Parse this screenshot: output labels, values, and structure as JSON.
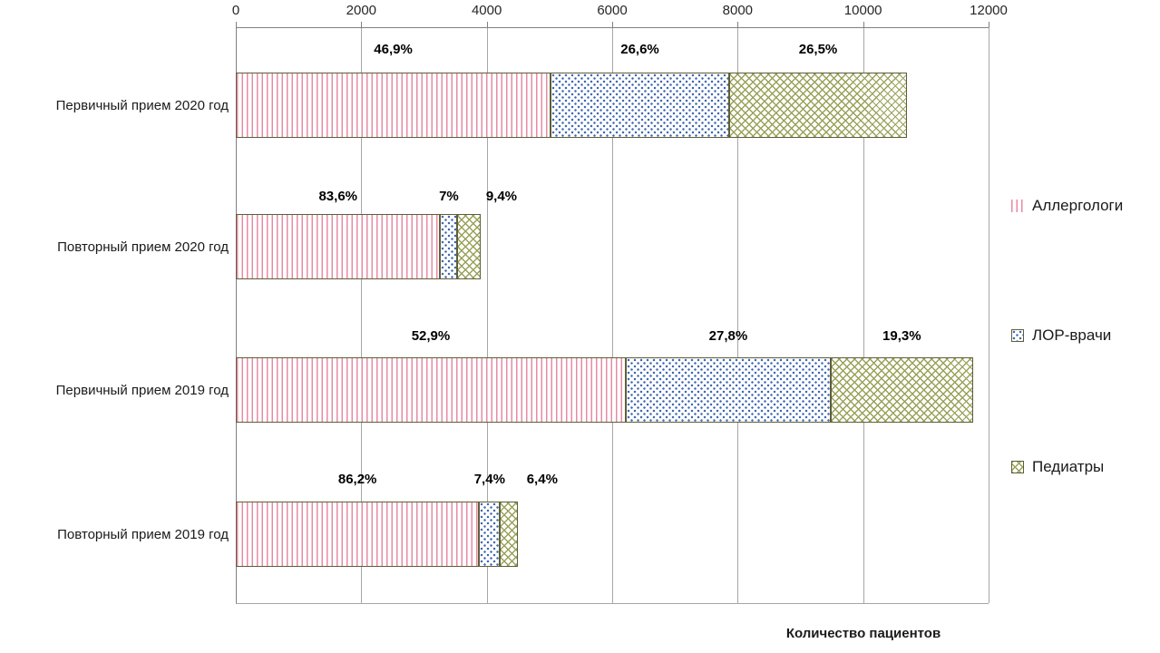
{
  "chart_data": {
    "type": "bar",
    "orientation": "horizontal",
    "stacked": true,
    "title": "",
    "xlabel": "Количество пациентов",
    "xlim": [
      0,
      12000
    ],
    "x_ticks": [
      0,
      2000,
      4000,
      6000,
      8000,
      10000,
      12000
    ],
    "grid": true,
    "legend_position": "right",
    "categories": [
      "Первичный прием 2020 год",
      "Повторный прием 2020 год",
      "Первичный прием 2019 год",
      "Повторный прием 2019 год"
    ],
    "series": [
      {
        "name": "Аллергологи",
        "pattern": "vstripes-pink",
        "color": "#e58ca4",
        "values": [
          5018,
          3260,
          6216,
          3879
        ],
        "percent_labels": [
          "46,9%",
          "83,6%",
          "52,9%",
          "86,2%"
        ]
      },
      {
        "name": "ЛОР-врачи",
        "pattern": "dots-blue",
        "color": "#4169b2",
        "values": [
          2846,
          273,
          3267,
          333
        ],
        "percent_labels": [
          "26,6%",
          "7%",
          "27,8%",
          "7,4%"
        ]
      },
      {
        "name": "Педиатры",
        "pattern": "hatch-olive",
        "color": "#98a258",
        "values": [
          2836,
          367,
          2268,
          288
        ],
        "percent_labels": [
          "26,5%",
          "9,4%",
          "19,3%",
          "6,4%"
        ]
      }
    ],
    "totals": [
      10700,
      3900,
      11751,
      4500
    ],
    "colors": {
      "bar_border": "#5e5e3a",
      "grid": "#a6a6a6",
      "axis": "#808080",
      "text": "#1a1a1a"
    }
  }
}
